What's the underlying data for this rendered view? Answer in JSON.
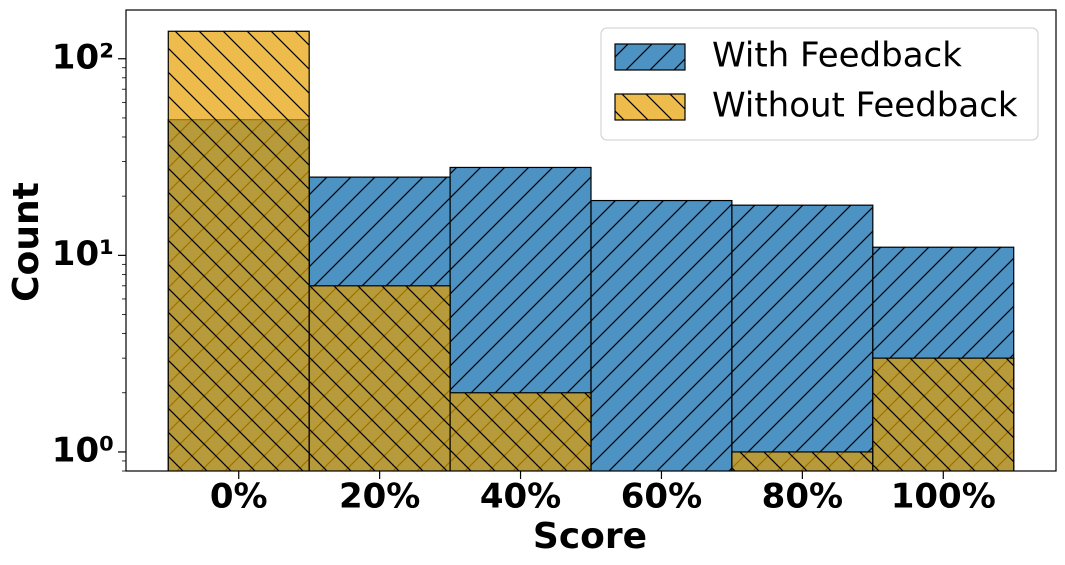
{
  "chart_data": {
    "type": "bar",
    "xlabel": "Score",
    "ylabel": "Count",
    "categories": [
      "0%",
      "20%",
      "40%",
      "60%",
      "80%",
      "100%"
    ],
    "series": [
      {
        "name": "With Feedback",
        "color": "#1f77b4",
        "hatch": "/",
        "values": [
          49,
          25,
          28,
          19,
          18,
          11
        ]
      },
      {
        "name": "Without Feedback",
        "color": "#e69f00",
        "hatch": "\\",
        "values": [
          138,
          7,
          2,
          0,
          1,
          3
        ]
      }
    ],
    "ylim": [
      0.8,
      177
    ],
    "log_scale": true,
    "yticks": [
      {
        "value": 1,
        "label": "10⁰"
      },
      {
        "value": 10,
        "label": "10¹"
      },
      {
        "value": 100,
        "label": "10²"
      }
    ],
    "legend": "upper right"
  }
}
